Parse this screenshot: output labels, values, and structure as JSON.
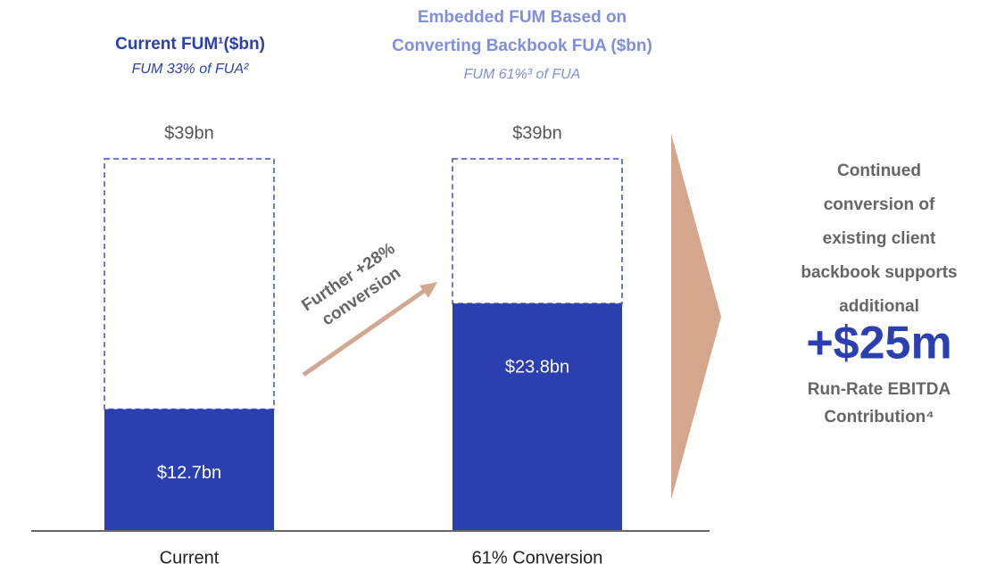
{
  "chart_data": {
    "type": "bar",
    "title": "Current FUM¹($bn)",
    "subtitle": "FUM 33% of FUA²",
    "title_2": [
      "Embedded FUM Based on",
      "Converting Backbook FUA ($bn)"
    ],
    "subtitle_2": "FUM 61%³ of FUA",
    "categories": [
      "Current",
      "61% Conversion"
    ],
    "values": [
      12.7,
      23.8
    ],
    "value_labels": [
      "$12.7bn",
      "$23.8bn"
    ],
    "totals": [
      39,
      39
    ],
    "total_labels": [
      "$39bn",
      "$39bn"
    ],
    "color": "#2b3fb0",
    "annotation": [
      "Further +28%",
      "conversion"
    ],
    "callout": [
      "Continued",
      "conversion of",
      "existing client",
      "backbook supports",
      "additional"
    ],
    "callout_value": "+$25m",
    "callout_footer": [
      "Run-Rate EBITDA",
      "Contribution⁴"
    ]
  }
}
